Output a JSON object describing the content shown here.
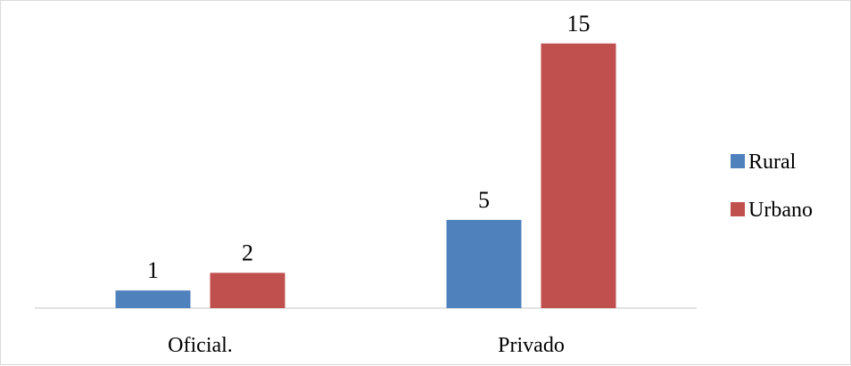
{
  "chart_data": {
    "type": "bar",
    "title": "",
    "xlabel": "",
    "ylabel": "",
    "categories": [
      "Oficial.",
      "Privado"
    ],
    "series": [
      {
        "name": "Rural",
        "color": "#4f81bd",
        "values": [
          1,
          5
        ]
      },
      {
        "name": "Urbano",
        "color": "#c0504d",
        "values": [
          2,
          15
        ]
      }
    ],
    "ylim": [
      0,
      16
    ],
    "grid": false,
    "legend_position": "right",
    "data_labels": true
  }
}
